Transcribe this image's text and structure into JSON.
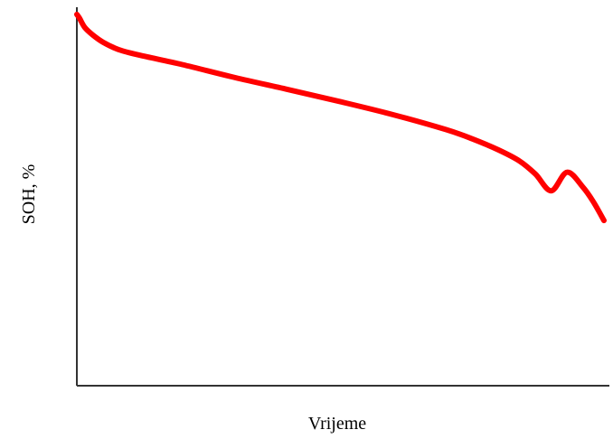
{
  "chart_data": {
    "type": "line",
    "title": "",
    "xlabel": "Vrijeme",
    "ylabel": "SOH, %",
    "xlim": [
      0,
      100
    ],
    "ylim": [
      0,
      100
    ],
    "grid": false,
    "legend": "none",
    "x_ticks_shown": false,
    "y_ticks_shown": false,
    "series": [
      {
        "color": "#ff0000",
        "x": [
          0,
          0.5,
          1.5,
          3,
          5,
          8,
          12,
          20,
          30,
          40,
          50,
          60,
          70,
          75,
          80,
          84,
          87,
          90,
          93,
          96,
          98,
          100
        ],
        "y": [
          100,
          99,
          96.5,
          94.5,
          92.5,
          90.5,
          89,
          86.5,
          83,
          79.8,
          76.5,
          73,
          69,
          66.5,
          63.5,
          60.5,
          57,
          52.5,
          57.5,
          53.5,
          49.5,
          44.5
        ]
      }
    ]
  }
}
